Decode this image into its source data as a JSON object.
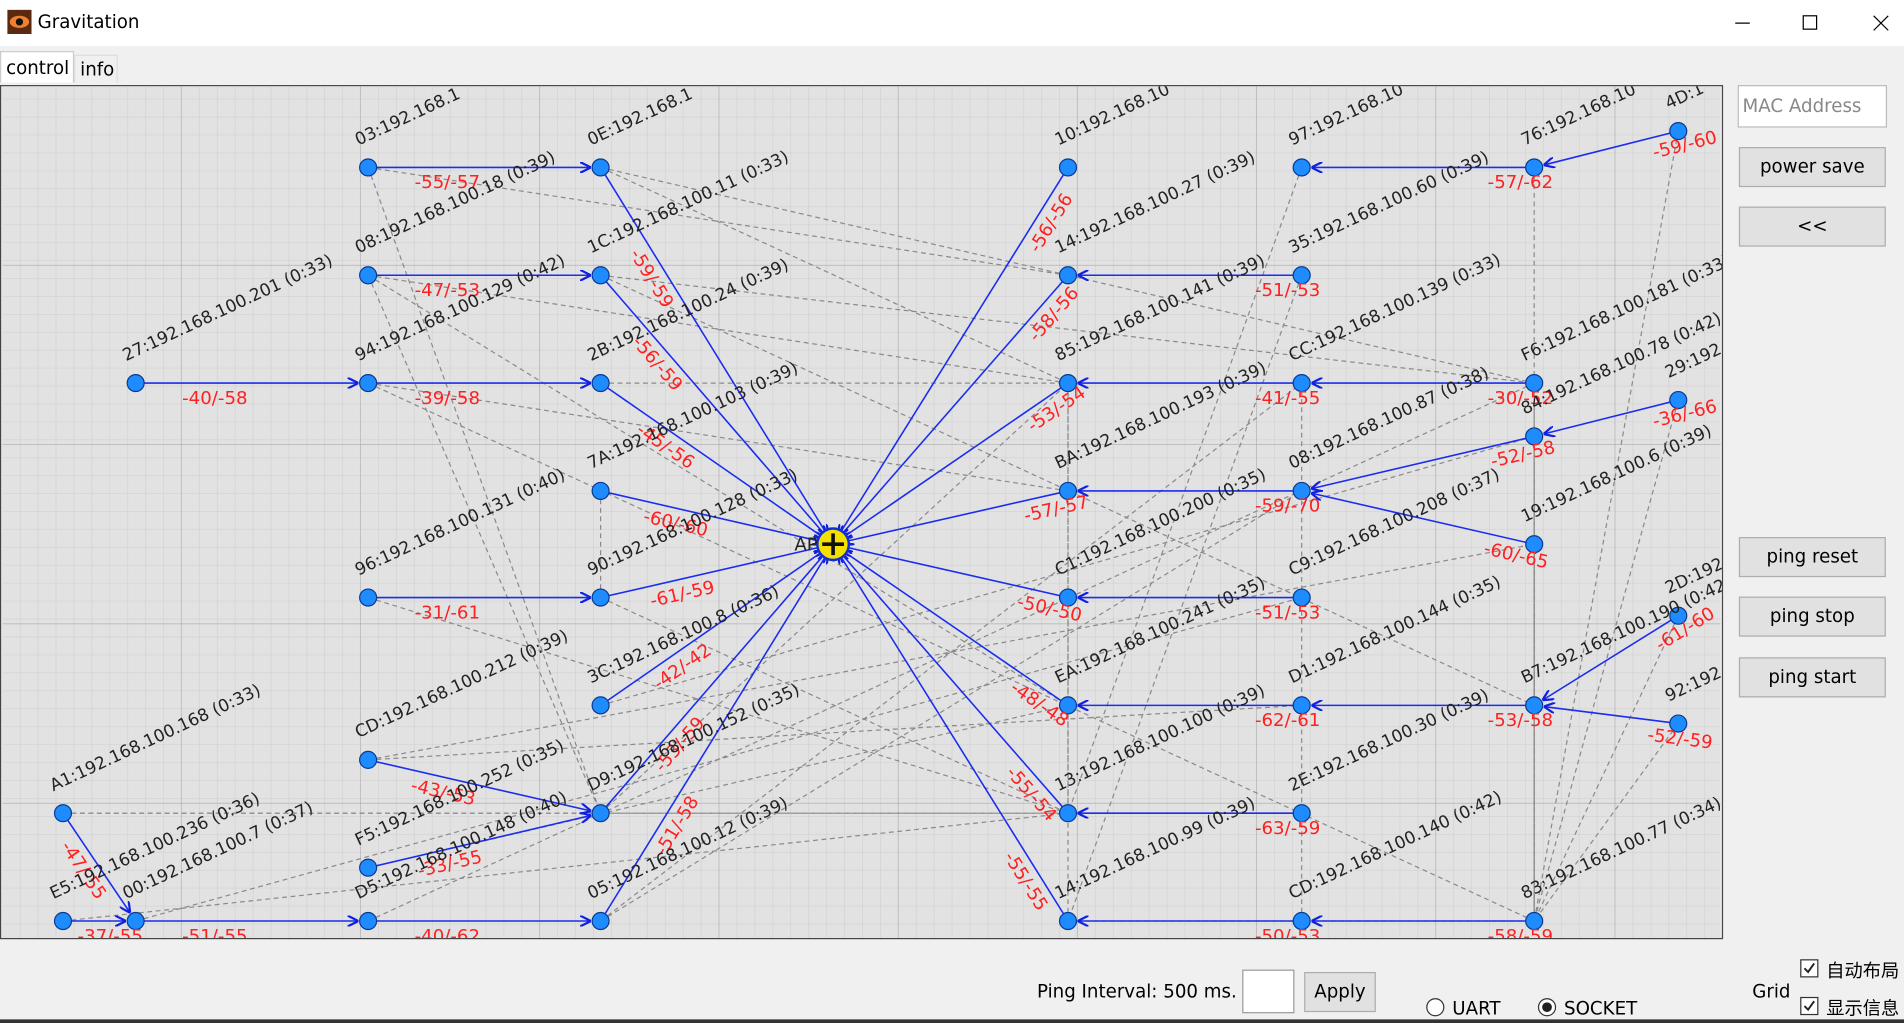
{
  "window": {
    "title": "Gravitation"
  },
  "tabs": [
    "control",
    "info"
  ],
  "graph": {
    "nodes": [
      "03:192.168.1",
      "0E:192.168.1",
      "10:192.168.10",
      "97:192.168.10",
      "76:192.168.10",
      "4D:1",
      "08:192.168.100.18 (0:39)",
      "1C:192.168.100.11 (0:33)",
      "14:192.168.100.27 (0:39)",
      "35:192.168.100.60 (0:39)",
      "27:192.168.100.201 (0:33)",
      "94:192.168.100.129 (0:42)",
      "2B:192.168.100.24 (0:39)",
      "85:192.168.100.141 (0:39)",
      "CC:192.168.100.139 (0:33)",
      "F6:192.168.100.181 (0:33)",
      "29:192",
      "84:192.168.100.78 (0:42)",
      "7A:192.168.100.103 (0:39)",
      "BA:192.168.100.193 (0:39)",
      "08:192.168.100.87 (0:38)",
      "19:192.168.100.6 (0:39)",
      "AP",
      "96:192.168.100.131 (0:40)",
      "90:192.168.100.128 (0:33)",
      "C1:192.168.100.200 (0:35)",
      "C9:192.168.100.208 (0:37)",
      "2D:192",
      "3C:192.168.100.8 (0:36)",
      "EA:192.168.100.241 (0:35)",
      "D1:192.168.100.144 (0:35)",
      "B7:192.168.100.190 (0:42)",
      "92:192",
      "A1:192.168.100.168 (0:33)",
      "CD:192.168.100.212 (0:39)",
      "D9:192.168.100.152 (0:35)",
      "13:192.168.100.100 (0:39)",
      "2E:192.168.100.30 (0:39)",
      "F5:192.168.100.252 (0:35)",
      "E5:192.168.100.236 (0:36)",
      "00:192.168.100.7 (0:37)",
      "D5:192.168.100.148 (0:40)",
      "05:192.168.100.12 (0:39)",
      "14:192.168.100.99 (0:39)",
      "CD:192.168.100.140 (0:42)",
      "83:192.168.100.77 (0:34)"
    ],
    "links": [
      "-55/-57",
      "-47/-53",
      "-40/-58",
      "-39/-58",
      "-31/-61",
      "-43/-53",
      "-33/-55",
      "-37/-55",
      "-47/-55",
      "-51/-55",
      "-40/-62",
      "-59/-59",
      "-56/-59",
      "-45/-56",
      "-60/-60",
      "-61/-59",
      "-42/-42",
      "-53/-59",
      "-51/-58",
      "-56/-56",
      "-58/-56",
      "-53/-54",
      "-57/-57",
      "-50/-50",
      "-48/-48",
      "-55/-54",
      "-55/-55",
      "-51/-53",
      "-41/-55",
      "-59/-70",
      "-51/-53",
      "-62/-61",
      "-63/-59",
      "-50/-53",
      "-57/-62",
      "-59/-60",
      "-30/-52",
      "-52/-58",
      "-36/-66",
      "-60/-65",
      "-53/-58",
      "-61/-60",
      "-52/-59",
      "-58/-59"
    ]
  },
  "sidebar": {
    "mac_placeholder": "MAC Address",
    "buttons": [
      "power save",
      "<<",
      "ping reset",
      "ping stop",
      "ping start"
    ]
  },
  "footer": {
    "ping_interval": "Ping Interval: 500 ms.",
    "apply": "Apply",
    "radios": [
      "UART",
      "SOCKET"
    ],
    "grid_label": "Grid",
    "checkboxes": [
      "自动布局",
      "显示信息"
    ]
  }
}
